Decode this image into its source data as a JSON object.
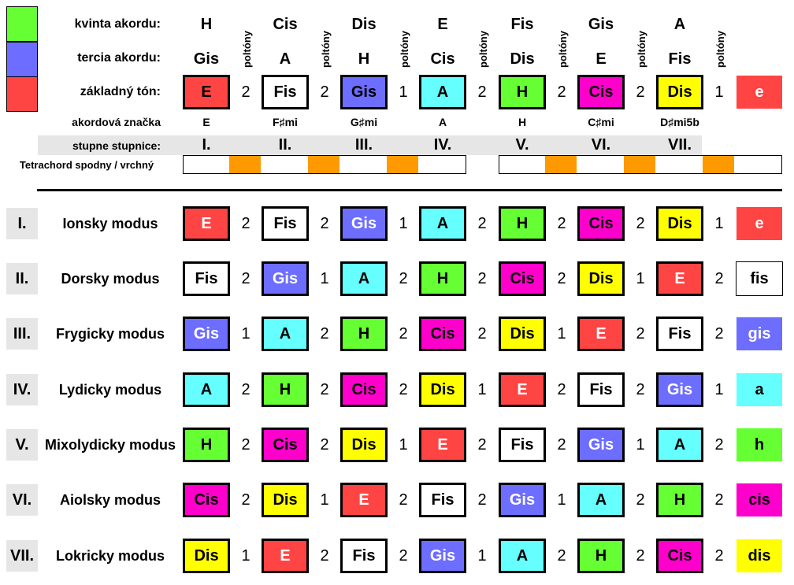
{
  "colors": {
    "E": "#ff4444",
    "Fis": "#ffffff",
    "Gis": "#6d6dff",
    "A": "#66ffff",
    "H": "#66ff33",
    "Cis": "#ff00cc",
    "Dis": "#ffff00",
    "green": "#66ff33",
    "blue": "#6d6dff",
    "red": "#ff4444",
    "orange": "#ff9900",
    "gray": "#e6e6e6"
  },
  "labels": {
    "kvinta": "kvinta akordu:",
    "tercia": "tercia akordu:",
    "zakladny": "základný tón:",
    "akordova": "akordová značka",
    "stupne": "stupne stupnice:",
    "tetrachord": "Tetrachord spodny / vrchný",
    "poltony": "poltóny"
  },
  "header": {
    "kvinta": [
      "H",
      "Cis",
      "Dis",
      "E",
      "Fis",
      "Gis",
      "A"
    ],
    "tercia": [
      "Gis",
      "A",
      "H",
      "Cis",
      "Dis",
      "E",
      "Fis"
    ],
    "zakladny": [
      "E",
      "Fis",
      "Gis",
      "A",
      "H",
      "Cis",
      "Dis"
    ],
    "zakladny_end": "e",
    "intervals": [
      "2",
      "2",
      "1",
      "2",
      "2",
      "2",
      "1"
    ],
    "akordy": [
      "E",
      "F♯mi",
      "G♯mi",
      "A",
      "H",
      "C♯mi",
      "D♯mi5b"
    ],
    "stupne": [
      "I.",
      "II.",
      "III.",
      "IV.",
      "V.",
      "VI.",
      "VII."
    ]
  },
  "modes": [
    {
      "roman": "I.",
      "name": "Ionsky modus",
      "notes": [
        "E",
        "Fis",
        "Gis",
        "A",
        "H",
        "Cis",
        "Dis"
      ],
      "intervals": [
        "2",
        "2",
        "1",
        "2",
        "2",
        "2",
        "1"
      ],
      "end": "e",
      "endkey": "E"
    },
    {
      "roman": "II.",
      "name": "Dorsky modus",
      "notes": [
        "Fis",
        "Gis",
        "A",
        "H",
        "Cis",
        "Dis",
        "E"
      ],
      "intervals": [
        "2",
        "1",
        "2",
        "2",
        "2",
        "1",
        "2"
      ],
      "end": "fis",
      "endkey": "Fis"
    },
    {
      "roman": "III.",
      "name": "Frygicky modus",
      "notes": [
        "Gis",
        "A",
        "H",
        "Cis",
        "Dis",
        "E",
        "Fis"
      ],
      "intervals": [
        "1",
        "2",
        "2",
        "2",
        "1",
        "2",
        "2"
      ],
      "end": "gis",
      "endkey": "Gis"
    },
    {
      "roman": "IV.",
      "name": "Lydicky modus",
      "notes": [
        "A",
        "H",
        "Cis",
        "Dis",
        "E",
        "Fis",
        "Gis"
      ],
      "intervals": [
        "2",
        "2",
        "2",
        "1",
        "2",
        "2",
        "1"
      ],
      "end": "a",
      "endkey": "A"
    },
    {
      "roman": "V.",
      "name": "Mixolydicky modus",
      "notes": [
        "H",
        "Cis",
        "Dis",
        "E",
        "Fis",
        "Gis",
        "A"
      ],
      "intervals": [
        "2",
        "2",
        "1",
        "2",
        "2",
        "1",
        "2"
      ],
      "end": "h",
      "endkey": "H"
    },
    {
      "roman": "VI.",
      "name": "Aiolsky modus",
      "notes": [
        "Cis",
        "Dis",
        "E",
        "Fis",
        "Gis",
        "A",
        "H"
      ],
      "intervals": [
        "2",
        "1",
        "2",
        "2",
        "1",
        "2",
        "2"
      ],
      "end": "cis",
      "endkey": "Cis"
    },
    {
      "roman": "VII.",
      "name": "Lokricky modus",
      "notes": [
        "Dis",
        "E",
        "Fis",
        "Gis",
        "A",
        "H",
        "Cis"
      ],
      "intervals": [
        "1",
        "2",
        "2",
        "1",
        "2",
        "2",
        "2"
      ],
      "end": "dis",
      "endkey": "Dis"
    }
  ]
}
